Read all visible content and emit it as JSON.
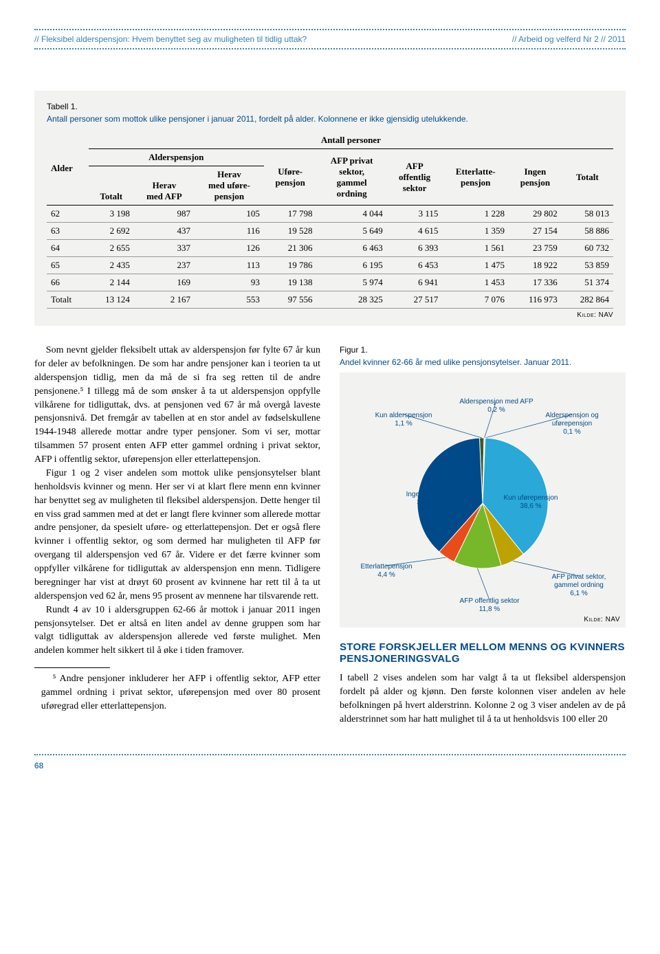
{
  "header": {
    "left": "// Fleksibel alderspensjon: Hvem benyttet seg av muligheten til tidlig uttak?",
    "right": "// Arbeid og velferd Nr 2 // 2011"
  },
  "table": {
    "caption_num": "Tabell 1.",
    "caption_text": "Antall personer som mottok ulike pensjoner i januar 2011, fordelt på alder. Kolonnene er ikke gjensidig utelukkende.",
    "super_header": "Antall personer",
    "group1": "Alderspensjon",
    "columns": [
      "Alder",
      "Totalt",
      "Herav med AFP",
      "Herav med uføre-pensjon",
      "Uføre-pensjon",
      "AFP privat sektor, gammel ordning",
      "AFP offentlig sektor",
      "Etterlatte-pensjon",
      "Ingen pensjon",
      "Totalt"
    ],
    "rows": [
      [
        "62",
        "3 198",
        "987",
        "105",
        "17 798",
        "4 044",
        "3 115",
        "1 228",
        "29 802",
        "58 013"
      ],
      [
        "63",
        "2 692",
        "437",
        "116",
        "19 528",
        "5 649",
        "4 615",
        "1 359",
        "27 154",
        "58 886"
      ],
      [
        "64",
        "2 655",
        "337",
        "126",
        "21 306",
        "6 463",
        "6 393",
        "1 561",
        "23 759",
        "60 732"
      ],
      [
        "65",
        "2 435",
        "237",
        "113",
        "19 786",
        "6 195",
        "6 453",
        "1 475",
        "18 922",
        "53 859"
      ],
      [
        "66",
        "2 144",
        "169",
        "93",
        "19 138",
        "5 974",
        "6 941",
        "1 453",
        "17 336",
        "51 374"
      ],
      [
        "Totalt",
        "13 124",
        "2 167",
        "553",
        "97 556",
        "28 325",
        "27 517",
        "7 076",
        "116 973",
        "282 864"
      ]
    ],
    "source": "Kilde: NAV"
  },
  "body": {
    "p1": "Som nevnt gjelder fleksibelt uttak av alderspensjon før fylte 67 år kun for deler av befolkningen. De som har andre pensjoner kan i teorien ta ut alderspensjon tidlig, men da må de si fra seg retten til de andre pensjonene.⁵ I tillegg må de som ønsker å ta ut alderspensjon oppfylle vilkårene for tidliguttak, dvs. at pensjonen ved 67 år må overgå laveste pensjonsnivå. Det fremgår av tabellen at en stor andel av fødselskullene 1944-1948 allerede mottar andre typer pensjoner. Som vi ser, mottar tilsammen 57 prosent enten AFP etter gammel ordning i privat sektor, AFP i offentlig sektor, uførepensjon eller etterlattepensjon.",
    "p2": "Figur 1 og 2 viser andelen som mottok ulike pensjonsytelser blant henholdsvis kvinner og menn. Her ser vi at klart flere menn enn kvinner har benyttet seg av muligheten til fleksibel alderspensjon. Dette henger til en viss grad sammen med at det er langt flere kvinner som allerede mottar andre pensjoner, da spesielt uføre- og etterlattepensjon. Det er også flere kvinner i offentlig sektor, og som dermed har muligheten til AFP før overgang til alderspensjon ved 67 år. Videre er det færre kvinner som oppfyller vilkårene for tidliguttak av alderspensjon enn menn. Tidligere beregninger har vist at drøyt 60 prosent av kvinnene har rett til å ta ut alderspensjon ved 62 år, mens 95 prosent av mennene har tilsvarende rett.",
    "p3": "Rundt 4 av 10 i aldersgruppen 62-66 år mottok i januar 2011 ingen pensjonsytelser. Det er altså en liten andel av denne gruppen som har valgt tidliguttak av alderspensjon allerede ved første mulighet. Men andelen kommer helt sikkert til å øke i tiden framover.",
    "footnote": "⁵ Andre pensjoner inkluderer her AFP i offentlig sektor, AFP etter gammel ordning i privat sektor, uførepensjon med over 80 prosent uføregrad eller etterlattepensjon."
  },
  "figure": {
    "caption_num": "Figur 1.",
    "caption_text": "Andel kvinner 62-66 år med ulike pensjonsytelser. Januar 2011.",
    "type": "pie",
    "source": "Kilde: NAV",
    "background_color": "#f2f2f0",
    "label_fontsize": 10,
    "label_color": "#014a89",
    "slices": [
      {
        "label": "Kun alderspensjon",
        "value": 1.1,
        "color": "#3e5a24",
        "label_text": "Kun alderspensjon 1,1 %"
      },
      {
        "label": "Alderspensjon med AFP",
        "value": 0.2,
        "color": "#000000",
        "label_text": "Alderspensjon med AFP 0,2 %"
      },
      {
        "label": "Alderspensjon og uførepensjon",
        "value": 0.1,
        "color": "#8a8a8a",
        "label_text": "Alderspensjon og uførepensjon 0,1 %"
      },
      {
        "label": "Kun uførepensjon",
        "value": 38.6,
        "color": "#2aa8d8",
        "label_text": "Kun uførepensjon 38,6 %"
      },
      {
        "label": "AFP privat sektor, gammel ordning",
        "value": 6.1,
        "color": "#bca300",
        "label_text": "AFP privat sektor, gammel ordning 6,1 %"
      },
      {
        "label": "AFP offentlig sektor",
        "value": 11.8,
        "color": "#76b829",
        "label_text": "AFP offentlig sektor 11,8 %"
      },
      {
        "label": "Etterlattepensjon",
        "value": 4.4,
        "color": "#e84c1a",
        "label_text": "Etterlattepensjon 4,4 %"
      },
      {
        "label": "Ingen pensjon",
        "value": 37.6,
        "color": "#014a89",
        "label_text": "Ingen pensjon 37,6 %"
      }
    ]
  },
  "section2": {
    "heading": "STORE FORSKJELLER MELLOM MENNS OG KVINNERS PENSJONERINGSVALG",
    "p1": "I tabell 2 vises andelen som har valgt å ta ut fleksibel alderspensjon fordelt på alder og kjønn. Den første kolonnen viser andelen av hele befolkningen på hvert alderstrinn. Kolonne 2 og 3 viser andelen av de på alderstrinnet som har hatt mulighet til å ta ut henholdsvis 100 eller 20"
  },
  "page_number": "68"
}
